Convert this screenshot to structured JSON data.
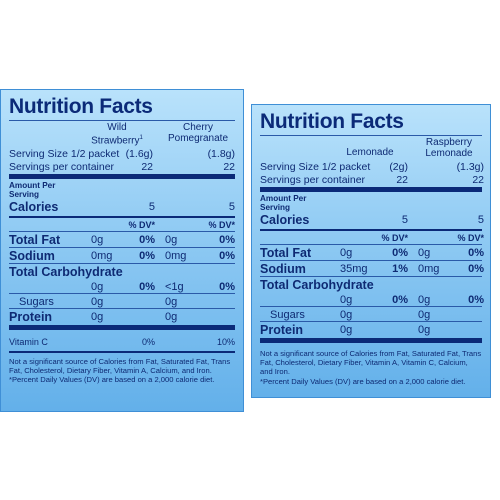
{
  "left": {
    "title": "Nutrition Facts",
    "col1_name": "Wild Strawberry",
    "col1_sup": "1",
    "col2_name": "Cherry Pomegranate",
    "serving_label": "Serving Size 1/2 packet",
    "serving_col1": "(1.6g)",
    "serving_col2": "(1.8g)",
    "servings_label": "Servings per container",
    "servings_col1": "22",
    "servings_col2": "22",
    "amount_label": "Amount Per Serving",
    "calories_label": "Calories",
    "calories_col1": "5",
    "calories_col2": "5",
    "dv_col1": "% DV*",
    "dv_col2": "% DV*",
    "fat_label": "Total Fat",
    "fat_col1_amt": "0g",
    "fat_col1_dv": "0%",
    "fat_col2_amt": "0g",
    "fat_col2_dv": "0%",
    "sodium_label": "Sodium",
    "sodium_col1_amt": "0mg",
    "sodium_col1_dv": "0%",
    "sodium_col2_amt": "0mg",
    "sodium_col2_dv": "0%",
    "carb_label": "Total Carbohydrate",
    "carb_col1_amt": "0g",
    "carb_col1_dv": "0%",
    "carb_col2_amt": "<1g",
    "carb_col2_dv": "0%",
    "sugars_label": "Sugars",
    "sugars_col1": "0g",
    "sugars_col2": "0g",
    "protein_label": "Protein",
    "protein_col1": "0g",
    "protein_col2": "0g",
    "vitc_label": "Vitamin C",
    "vitc_col1": "0%",
    "vitc_col2": "10%",
    "footnote1": "Not a significant source of Calories from Fat, Saturated Fat, Trans Fat, Cholesterol, Dietary Fiber, Vitamin A, Calcium, and Iron.",
    "footnote2": "*Percent Daily Values (DV) are based on a 2,000 calorie diet."
  },
  "right": {
    "title": "Nutrition Facts",
    "col1_name": "Lemonade",
    "col2_name": "Raspberry Lemonade",
    "serving_label": "Serving Size 1/2 packet",
    "serving_col1": "(2g)",
    "serving_col2": "(1.3g)",
    "servings_label": "Servings per container",
    "servings_col1": "22",
    "servings_col2": "22",
    "amount_label": "Amount Per Serving",
    "calories_label": "Calories",
    "calories_col1": "5",
    "calories_col2": "5",
    "dv_col1": "% DV*",
    "dv_col2": "% DV*",
    "fat_label": "Total Fat",
    "fat_col1_amt": "0g",
    "fat_col1_dv": "0%",
    "fat_col2_amt": "0g",
    "fat_col2_dv": "0%",
    "sodium_label": "Sodium",
    "sodium_col1_amt": "35mg",
    "sodium_col1_dv": "1%",
    "sodium_col2_amt": "0mg",
    "sodium_col2_dv": "0%",
    "carb_label": "Total Carbohydrate",
    "carb_col1_amt": "0g",
    "carb_col1_dv": "0%",
    "carb_col2_amt": "0g",
    "carb_col2_dv": "0%",
    "sugars_label": "Sugars",
    "sugars_col1": "0g",
    "sugars_col2": "0g",
    "protein_label": "Protein",
    "protein_col1": "0g",
    "protein_col2": "0g",
    "footnote1": "Not a significant source of Calories from Fat, Saturated Fat, Trans Fat, Cholesterol, Dietary Fiber, Vitamin A, Vitamin C, Calcium, and Iron.",
    "footnote2": "*Percent Daily Values (DV) are based on a 2,000 calorie diet."
  }
}
